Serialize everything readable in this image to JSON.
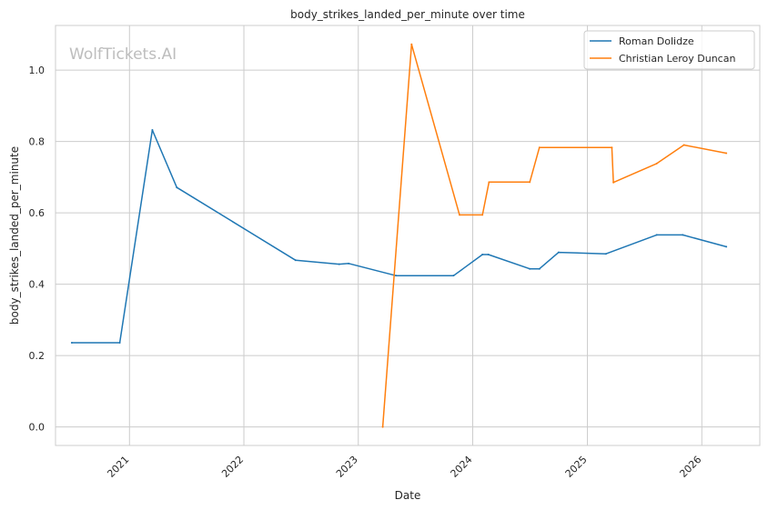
{
  "chart_data": {
    "type": "line",
    "title": "body_strikes_landed_per_minute over time",
    "xlabel": "Date",
    "ylabel": "body_strikes_landed_per_minute",
    "watermark": "WolfTickets.AI",
    "xlim": [
      "2020-05-10",
      "2026-07-05"
    ],
    "ylim": [
      -0.052,
      1.125
    ],
    "x_ticks": [
      "2021",
      "2022",
      "2023",
      "2024",
      "2025",
      "2026"
    ],
    "y_ticks": [
      "0.0",
      "0.2",
      "0.4",
      "0.6",
      "0.8",
      "1.0"
    ],
    "grid": true,
    "legend": "upper right",
    "series": [
      {
        "name": "Roman Dolidze",
        "color": "#1f77b4",
        "points": [
          [
            "2020-07-01",
            0.236
          ],
          [
            "2020-12-01",
            0.236
          ],
          [
            "2021-03-15",
            0.832
          ],
          [
            "2021-06-01",
            0.671
          ],
          [
            "2022-06-15",
            0.467
          ],
          [
            "2022-11-01",
            0.456
          ],
          [
            "2022-12-01",
            0.458
          ],
          [
            "2023-05-01",
            0.424
          ],
          [
            "2023-11-01",
            0.424
          ],
          [
            "2024-02-01",
            0.483
          ],
          [
            "2024-02-20",
            0.483
          ],
          [
            "2024-07-01",
            0.443
          ],
          [
            "2024-08-01",
            0.443
          ],
          [
            "2024-10-01",
            0.489
          ],
          [
            "2025-03-01",
            0.485
          ],
          [
            "2025-08-10",
            0.538
          ],
          [
            "2025-11-01",
            0.538
          ],
          [
            "2026-03-20",
            0.505
          ]
        ]
      },
      {
        "name": "Christian Leroy Duncan",
        "color": "#ff7f0e",
        "points": [
          [
            "2023-03-20",
            0.0
          ],
          [
            "2023-06-20",
            1.072
          ],
          [
            "2023-11-20",
            0.594
          ],
          [
            "2024-02-01",
            0.594
          ],
          [
            "2024-02-22",
            0.686
          ],
          [
            "2024-07-01",
            0.686
          ],
          [
            "2024-08-01",
            0.783
          ],
          [
            "2025-03-20",
            0.783
          ],
          [
            "2025-03-25",
            0.685
          ],
          [
            "2025-08-10",
            0.738
          ],
          [
            "2025-11-05",
            0.79
          ],
          [
            "2026-03-20",
            0.767
          ]
        ]
      }
    ]
  }
}
